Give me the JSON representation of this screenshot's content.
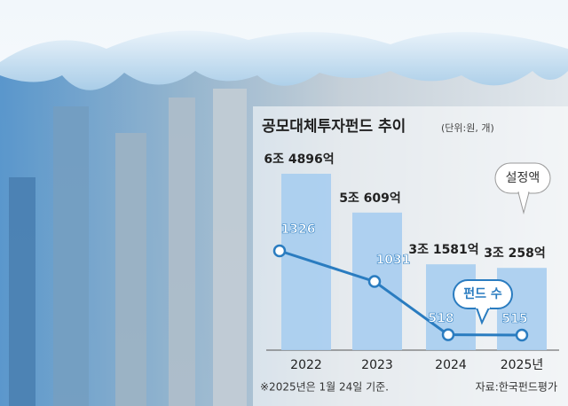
{
  "chart_data": {
    "type": "bar_line",
    "title": "공모대체투자펀드 추이",
    "subtitle": "(단위:원, 개)",
    "categories": [
      "2022",
      "2023",
      "2024",
      "2025년"
    ],
    "series": [
      {
        "name": "설정액",
        "type": "bar",
        "color": "#a7cdef",
        "values": [
          64896,
          50609,
          31581,
          30258
        ],
        "value_labels": [
          "6조 4896억",
          "5조 609억",
          "3조 1581억",
          "3조 258억"
        ]
      },
      {
        "name": "펀드 수",
        "type": "line",
        "color": "#2a7cc0",
        "values": [
          1326,
          1031,
          518,
          515
        ]
      }
    ],
    "note": "※2025년은 1월 24일 기준.",
    "source": "자료:한국펀드평가"
  }
}
